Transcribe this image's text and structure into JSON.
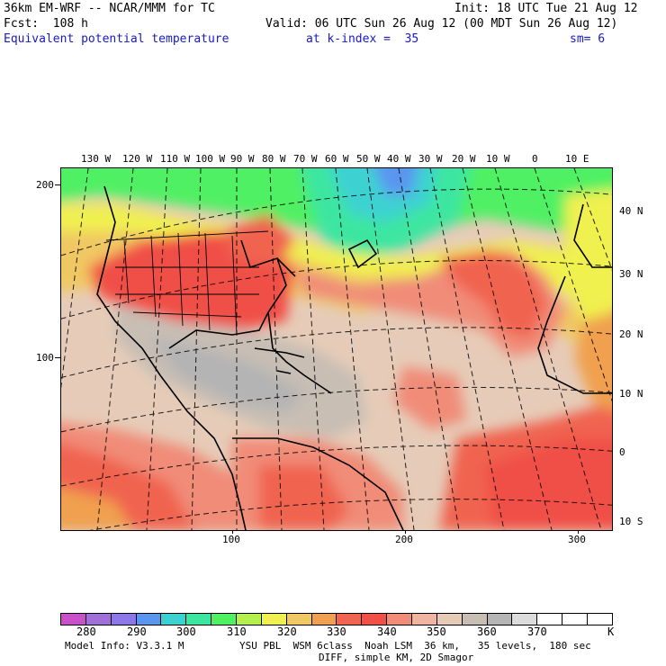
{
  "header": {
    "title_left": "36km EM-WRF -- NCAR/MMM for TC",
    "init": "Init: 18 UTC Tue 21 Aug 12",
    "fcst": "Fcst:  108 h",
    "valid": "Valid: 06 UTC Sun 26 Aug 12 (00 MDT Sun 26 Aug 12)",
    "field": "Equivalent potential temperature",
    "kindex": "at k-index =  35",
    "smooth": "sm= 6"
  },
  "map": {
    "top_lon_labels": [
      "130 W",
      "120 W",
      "110 W",
      "100 W",
      "90 W",
      "80 W",
      "70 W",
      "60 W",
      "50 W",
      "40 W",
      "30 W",
      "20 W",
      "10 W",
      "0",
      "10 E"
    ],
    "right_lat_labels": [
      "40 N",
      "30 N",
      "20 N",
      "10 N",
      "0",
      "10 S"
    ],
    "left_y_labels": [
      "200",
      "100"
    ],
    "bottom_x_labels": [
      "100",
      "200",
      "300"
    ]
  },
  "colorbar": {
    "colors": [
      "#c850c8",
      "#a070d8",
      "#8c78e8",
      "#5a96f0",
      "#3cd2d2",
      "#3ce6a0",
      "#50f064",
      "#b4f050",
      "#f0f050",
      "#f0c864",
      "#f0a050",
      "#f06450",
      "#f05046",
      "#f08c78",
      "#f0b4a0",
      "#e6ccb8",
      "#c8beb4",
      "#b4b4b4",
      "#dcdcdc",
      "#ffffff",
      "#ffffff",
      "#ffffff"
    ],
    "labels": [
      "280",
      "290",
      "300",
      "310",
      "320",
      "330",
      "340",
      "350",
      "360",
      "370"
    ],
    "unit": "K"
  },
  "footer": {
    "model_info": "Model Info: V3.3.1 M",
    "physics": "YSU PBL  WSM 6class  Noah LSM  36 km,   35 levels,  180 sec",
    "diff": "DIFF, simple KM, 2D Smagor"
  }
}
